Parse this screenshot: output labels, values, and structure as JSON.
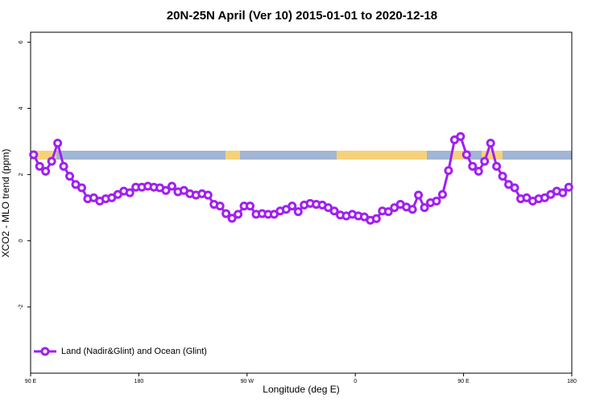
{
  "chart_data": {
    "type": "line",
    "title": "20N-25N April (Ver 10)   2015-01-01 to 2020-12-18",
    "x_label": "Longitude (deg E)",
    "y_label": "XCO2 - MLO trend (ppm)",
    "legend_position": "bottom-left",
    "xlim": [
      90,
      540
    ],
    "ylim": [
      -4,
      6.3
    ],
    "xticks": [
      {
        "value": 90,
        "label": "90 E"
      },
      180,
      {
        "value": 270,
        "label": "90 W"
      },
      {
        "value": 360,
        "label": "0"
      },
      {
        "value": 450,
        "label": "90 E"
      },
      {
        "value": 540,
        "label": "180"
      }
    ],
    "yticks": [
      -2,
      0,
      2,
      4,
      6
    ],
    "x": [
      92.5,
      97.5,
      102.5,
      107.5,
      112.5,
      117.5,
      122.5,
      127.5,
      132.5,
      137.5,
      142.5,
      147.5,
      152.5,
      157.5,
      162.5,
      167.5,
      172.5,
      177.5,
      182.5,
      187.5,
      192.5,
      197.5,
      202.5,
      207.5,
      212.5,
      217.5,
      222.5,
      227.5,
      232.5,
      237.5,
      242.5,
      247.5,
      252.5,
      257.5,
      262.5,
      267.5,
      272.5,
      277.5,
      282.5,
      287.5,
      292.5,
      297.5,
      302.5,
      307.5,
      312.5,
      317.5,
      322.5,
      327.5,
      332.5,
      337.5,
      342.5,
      347.5,
      352.5,
      357.5,
      362.5,
      367.5,
      372.5,
      377.5,
      382.5,
      387.5,
      392.5,
      397.5,
      402.5,
      407.5,
      412.5,
      417.5,
      422.5,
      427.5,
      432.5,
      437.5,
      442.5,
      447.5,
      452.5,
      457.5,
      462.5,
      467.5,
      472.5,
      477.5,
      482.5,
      487.5,
      492.5,
      497.5,
      502.5,
      507.5,
      512.5,
      517.5,
      522.5,
      527.5,
      532.5,
      537.5
    ],
    "series": [
      {
        "name": "Land (Nadir&Glint) and Ocean (Glint)",
        "color": "#a020f0",
        "values": [
          2.6,
          2.25,
          2.1,
          2.4,
          2.95,
          2.25,
          1.95,
          1.7,
          1.6,
          1.27,
          1.3,
          1.2,
          1.27,
          1.3,
          1.4,
          1.5,
          1.45,
          1.62,
          1.62,
          1.65,
          1.62,
          1.6,
          1.52,
          1.65,
          1.48,
          1.52,
          1.42,
          1.38,
          1.42,
          1.38,
          1.1,
          1.05,
          0.82,
          0.68,
          0.8,
          1.05,
          1.05,
          0.8,
          0.82,
          0.8,
          0.8,
          0.9,
          0.95,
          1.05,
          0.88,
          1.08,
          1.13,
          1.1,
          1.08,
          1.0,
          0.9,
          0.78,
          0.75,
          0.8,
          0.75,
          0.72,
          0.62,
          0.67,
          0.9,
          0.88,
          1.0,
          1.1,
          1.02,
          0.95,
          1.38,
          1.0,
          1.15,
          1.2,
          1.4,
          2.12,
          3.05,
          3.15,
          2.6,
          2.25,
          2.1,
          2.4,
          2.95,
          2.25,
          1.95,
          1.7,
          1.6,
          1.27,
          1.3,
          1.2,
          1.27,
          1.3,
          1.4,
          1.5,
          1.45,
          1.62
        ]
      }
    ]
  }
}
